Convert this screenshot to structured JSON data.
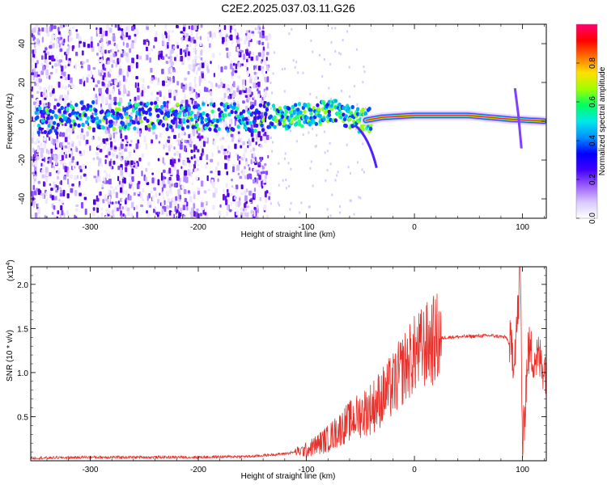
{
  "title": "C2E2.2025.037.03.11.G26",
  "colors": {
    "accent_red": "#e8302a",
    "frame": "#000000",
    "background": "#ffffff",
    "colormap": [
      "#ffffff",
      "#e6d8ff",
      "#b98cff",
      "#8a3cff",
      "#5a00ff",
      "#0000ff",
      "#00a0ff",
      "#00e0e0",
      "#00ff80",
      "#80ff00",
      "#ffff00",
      "#ff8000",
      "#ff0000",
      "#ff0080"
    ]
  },
  "chart_data": [
    {
      "type": "heatmap",
      "name": "spectrogram",
      "xlabel": "Height of straight line (km)",
      "ylabel": "Frequency (Hz)",
      "xlim": [
        -355,
        122
      ],
      "ylim": [
        -50,
        50
      ],
      "x_ticks": [
        {
          "value": -300,
          "label": "-300"
        },
        {
          "value": -200,
          "label": "-200"
        },
        {
          "value": -100,
          "label": "-100"
        },
        {
          "value": 0,
          "label": "0"
        },
        {
          "value": 100,
          "label": "100"
        }
      ],
      "y_ticks": [
        {
          "value": 40,
          "label": "40"
        },
        {
          "value": 20,
          "label": "20"
        },
        {
          "value": 0,
          "label": "0"
        },
        {
          "value": -20,
          "label": "-20"
        },
        {
          "value": -40,
          "label": "-40"
        }
      ],
      "ridge_frequency_hz": [
        {
          "x": -330,
          "f": 4
        },
        {
          "x": -280,
          "f": 3
        },
        {
          "x": -200,
          "f": 2
        },
        {
          "x": -150,
          "f": 2
        },
        {
          "x": -120,
          "f": 2
        },
        {
          "x": -90,
          "f": 4
        },
        {
          "x": -70,
          "f": 5
        },
        {
          "x": -50,
          "f": 0
        },
        {
          "x": -30,
          "f": 2
        },
        {
          "x": 0,
          "f": 3
        },
        {
          "x": 50,
          "f": 3
        },
        {
          "x": 90,
          "f": 1
        },
        {
          "x": 122,
          "f": 0
        }
      ],
      "colorbar": {
        "label": "Normalized spectral amplitude",
        "range": [
          0,
          1
        ],
        "ticks": [
          {
            "value": 0.0,
            "label": "0.0"
          },
          {
            "value": 0.2,
            "label": "0.2"
          },
          {
            "value": 0.4,
            "label": "0.4"
          },
          {
            "value": 0.6,
            "label": "0.6"
          },
          {
            "value": 0.8,
            "label": "0.8"
          }
        ]
      }
    },
    {
      "type": "line",
      "name": "snr",
      "xlabel": "Height of straight line (km)",
      "ylabel": "SNR (10 * v/v)",
      "y_scale_label": "(x10",
      "y_scale_exp": "4",
      "y_scale_close": ")",
      "xlim": [
        -355,
        122
      ],
      "ylim": [
        0,
        2.2
      ],
      "x_ticks": [
        {
          "value": -300,
          "label": "-300"
        },
        {
          "value": -200,
          "label": "-200"
        },
        {
          "value": -100,
          "label": "-100"
        },
        {
          "value": 0,
          "label": "0"
        },
        {
          "value": 100,
          "label": "100"
        }
      ],
      "y_ticks": [
        {
          "value": 0.5,
          "label": "0.5"
        },
        {
          "value": 1.0,
          "label": "1.0"
        },
        {
          "value": 1.5,
          "label": "1.5"
        },
        {
          "value": 2.0,
          "label": "2.0"
        }
      ],
      "series": [
        {
          "name": "SNR",
          "x": [
            -355,
            -300,
            -200,
            -150,
            -120,
            -100,
            -80,
            -60,
            -40,
            -20,
            -10,
            0,
            10,
            20,
            30,
            50,
            70,
            85,
            92,
            96,
            98,
            100,
            105,
            115,
            122
          ],
          "values": [
            0.03,
            0.04,
            0.04,
            0.05,
            0.08,
            0.12,
            0.25,
            0.45,
            0.6,
            0.85,
            1.05,
            1.2,
            1.3,
            1.38,
            1.4,
            1.41,
            1.42,
            1.4,
            1.2,
            1.7,
            2.2,
            0.1,
            1.25,
            1.15,
            1.05
          ]
        }
      ]
    }
  ]
}
